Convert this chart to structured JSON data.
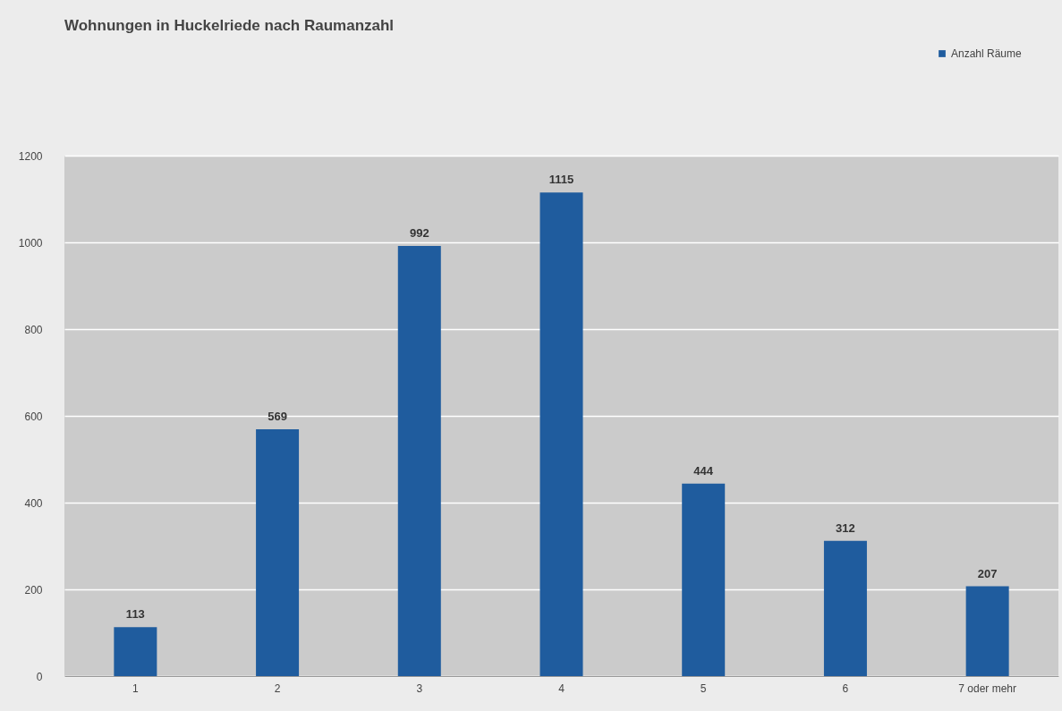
{
  "chart_data": {
    "type": "bar",
    "title": "Wohnungen in Huckelriede nach Raumanzahl",
    "categories": [
      "1",
      "2",
      "3",
      "4",
      "5",
      "6",
      "7 oder mehr"
    ],
    "series": [
      {
        "name": "Anzahl Räume",
        "color": "#1f5c9e",
        "values": [
          113,
          569,
          992,
          1115,
          444,
          312,
          207
        ]
      }
    ],
    "ylim": [
      0,
      1200
    ],
    "yticks": [
      0,
      200,
      400,
      600,
      800,
      1000,
      1200
    ],
    "grid": "y",
    "legend": "top right",
    "data_labels": true
  }
}
